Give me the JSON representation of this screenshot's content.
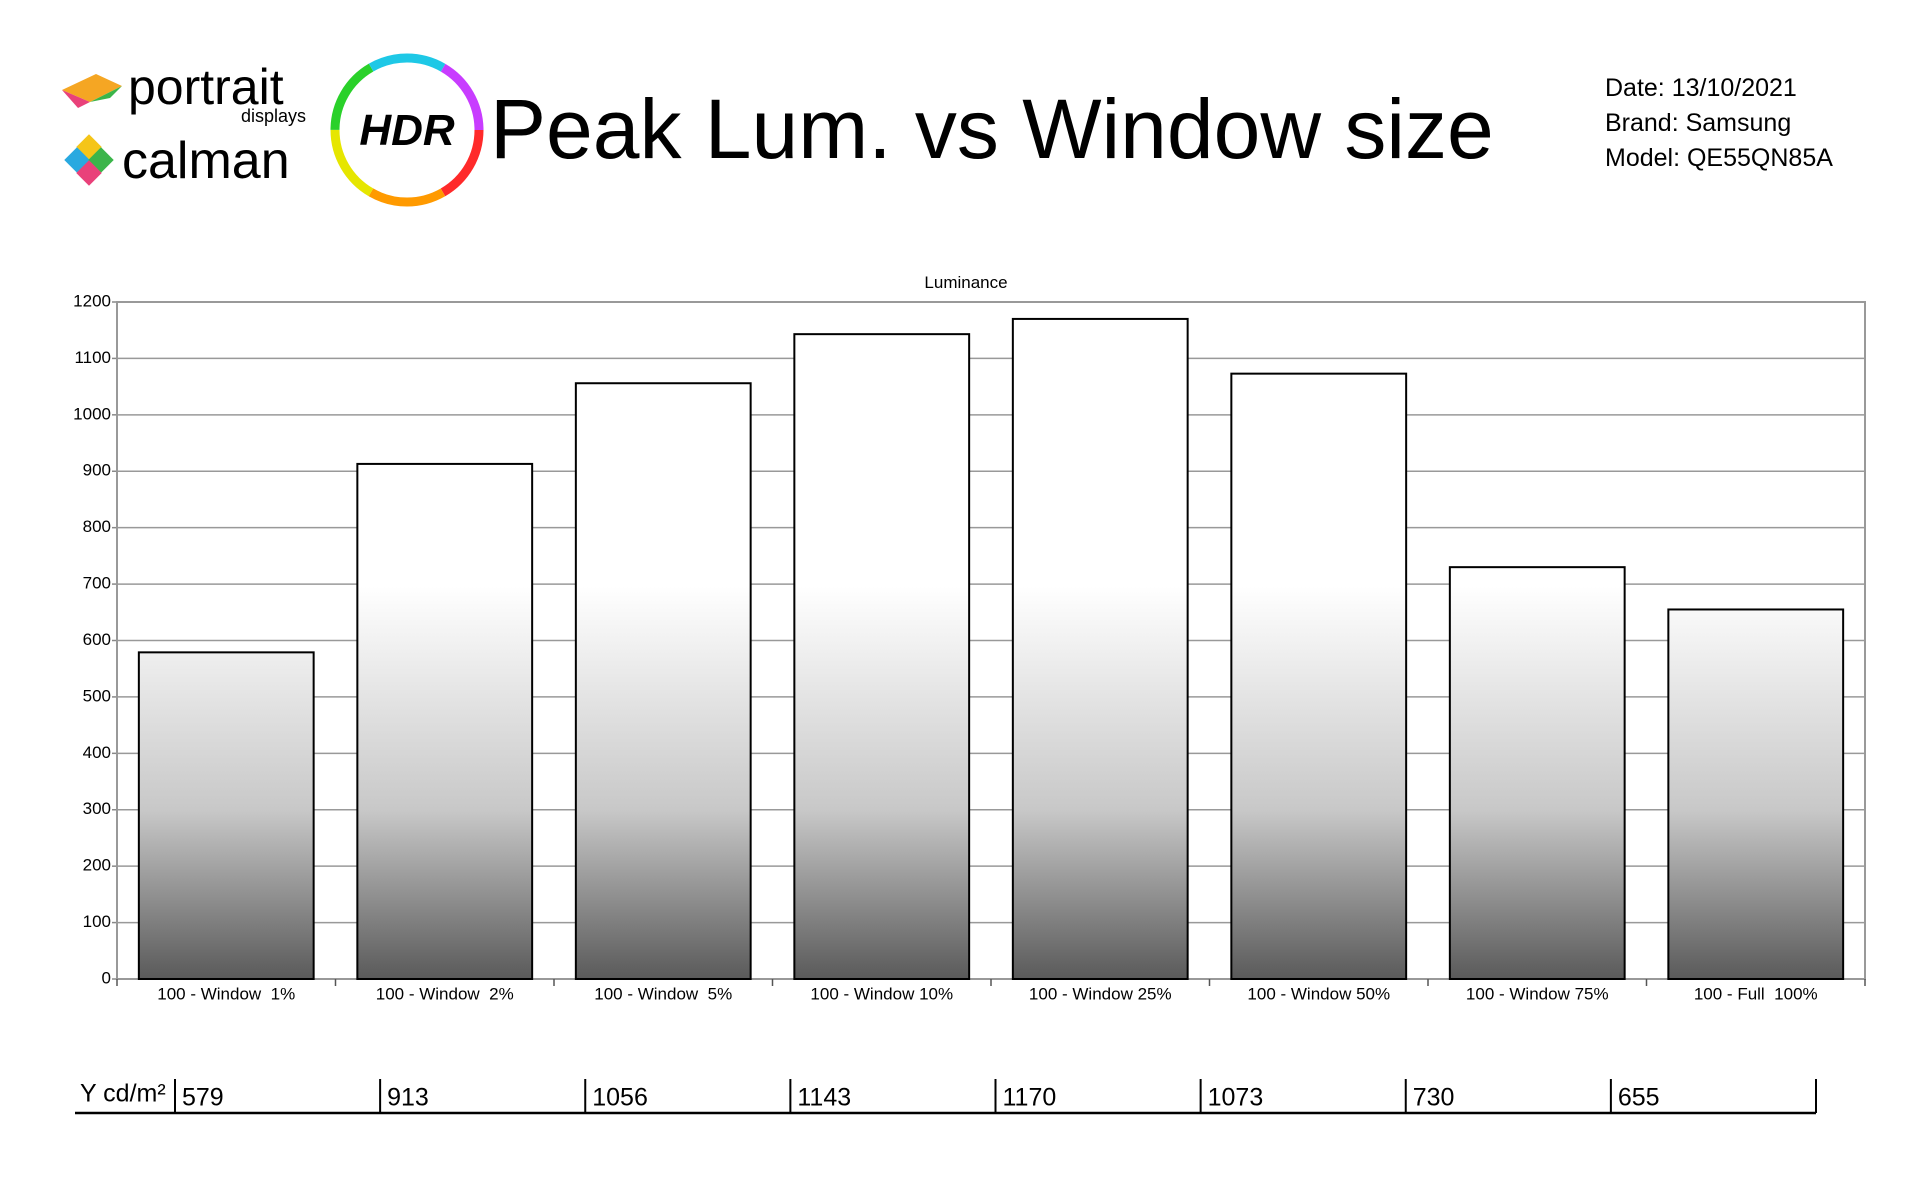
{
  "header": {
    "logo_portrait": "portrait",
    "logo_displays": "displays",
    "logo_calman": "calman",
    "badge": "HDR",
    "title": "Peak Lum. vs Window size",
    "info": [
      "Date: 13/10/2021",
      "Brand: Samsung",
      "Model: QE55QN85A"
    ]
  },
  "chart_data": {
    "type": "bar",
    "title": "Luminance",
    "categories": [
      "100 - Window  1%",
      "100 - Window  2%",
      "100 - Window  5%",
      "100 - Window 10%",
      "100 - Window 25%",
      "100 - Window 50%",
      "100 - Window 75%",
      "100 - Full  100%"
    ],
    "values": [
      579,
      913,
      1056,
      1143,
      1170,
      1073,
      730,
      655
    ],
    "ylim": [
      0,
      1200
    ],
    "yticks": [
      0,
      100,
      200,
      300,
      400,
      500,
      600,
      700,
      800,
      900,
      1000,
      1100,
      1200
    ],
    "grid": true,
    "table_label": "Y cd/m²"
  }
}
